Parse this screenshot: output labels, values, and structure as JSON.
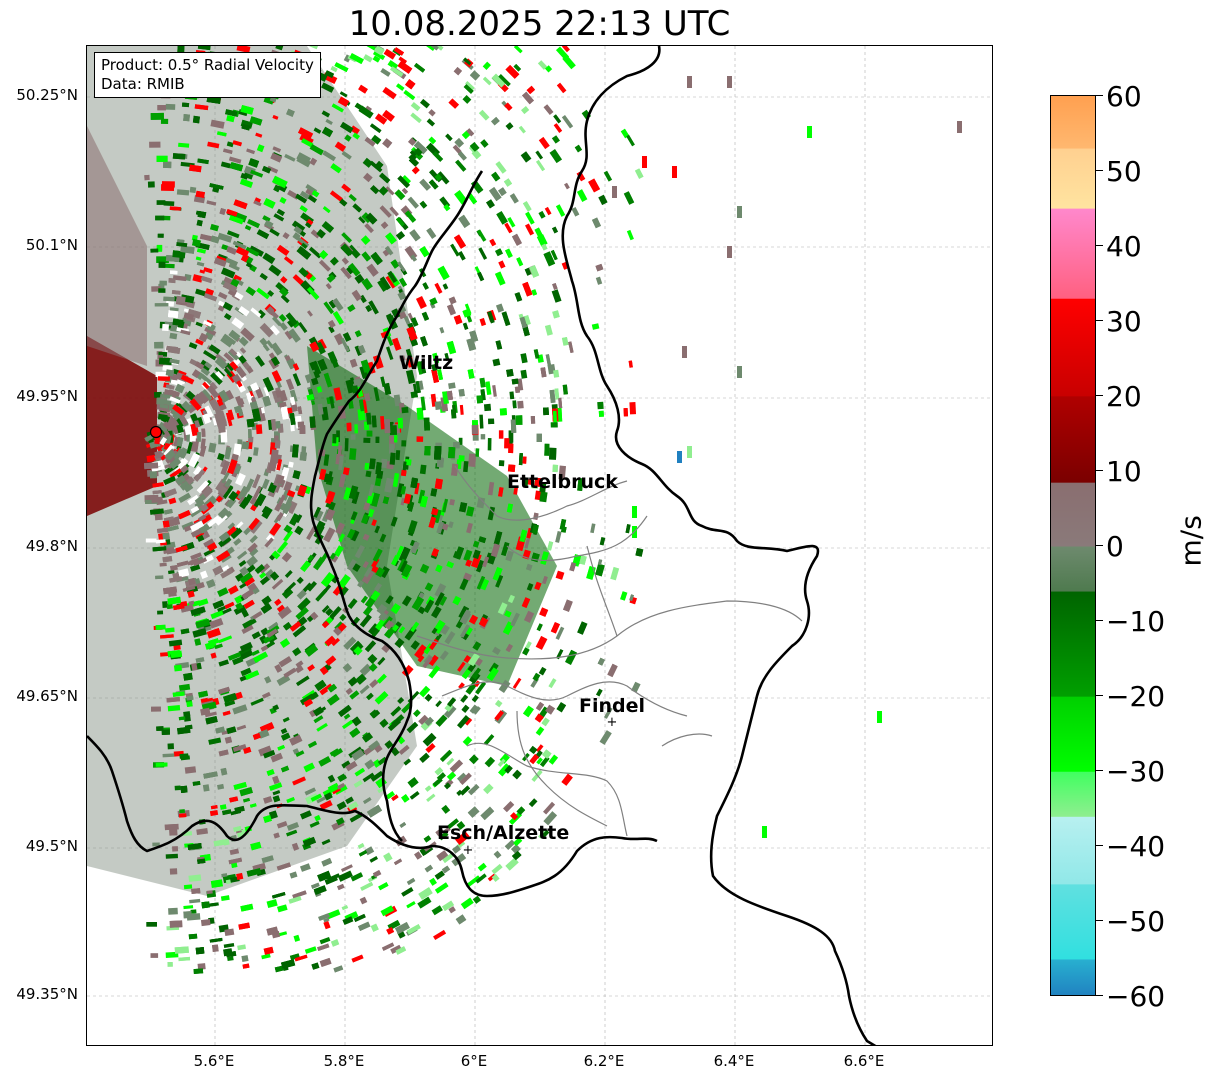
{
  "title": "10.08.2025 22:13 UTC",
  "info": {
    "product": "Product: 0.5° Radial Velocity",
    "data": "Data: RMIB"
  },
  "y_ticks": [
    "50.25°N",
    "50.1°N",
    "49.95°N",
    "49.8°N",
    "49.65°N",
    "49.5°N",
    "49.35°N"
  ],
  "x_ticks": [
    "5.6°E",
    "5.8°E",
    "6°E",
    "6.2°E",
    "6.4°E",
    "6.6°E"
  ],
  "colorbar": {
    "unit": "m/s",
    "ticks": [
      "60",
      "50",
      "40",
      "30",
      "20",
      "10",
      "0",
      "−10",
      "−20",
      "−30",
      "−40",
      "−50",
      "−60"
    ],
    "range": [
      -60,
      60
    ],
    "colors": {
      "orange": "#ffa050",
      "yellow": "#ffe4a0",
      "pink": "#ff88cc",
      "red": "#ff0000",
      "dark_red": "#7a0000",
      "mauve": "#8a6e70",
      "grey_green": "#6e8a6e",
      "dark_green": "#006400",
      "bright_green": "#00ff00",
      "light_green": "#90ee90",
      "light_cyan": "#b8f0f0",
      "cyan": "#30e0e0",
      "blue": "#2080c0"
    }
  },
  "map": {
    "radar_site": "radar-site",
    "cities": [
      {
        "name": "Wiltz",
        "marker": false
      },
      {
        "name": "Ettelbruck",
        "marker": false
      },
      {
        "name": "Findel",
        "marker": true
      },
      {
        "name": "Esch/Alzette",
        "marker": true
      }
    ]
  }
}
